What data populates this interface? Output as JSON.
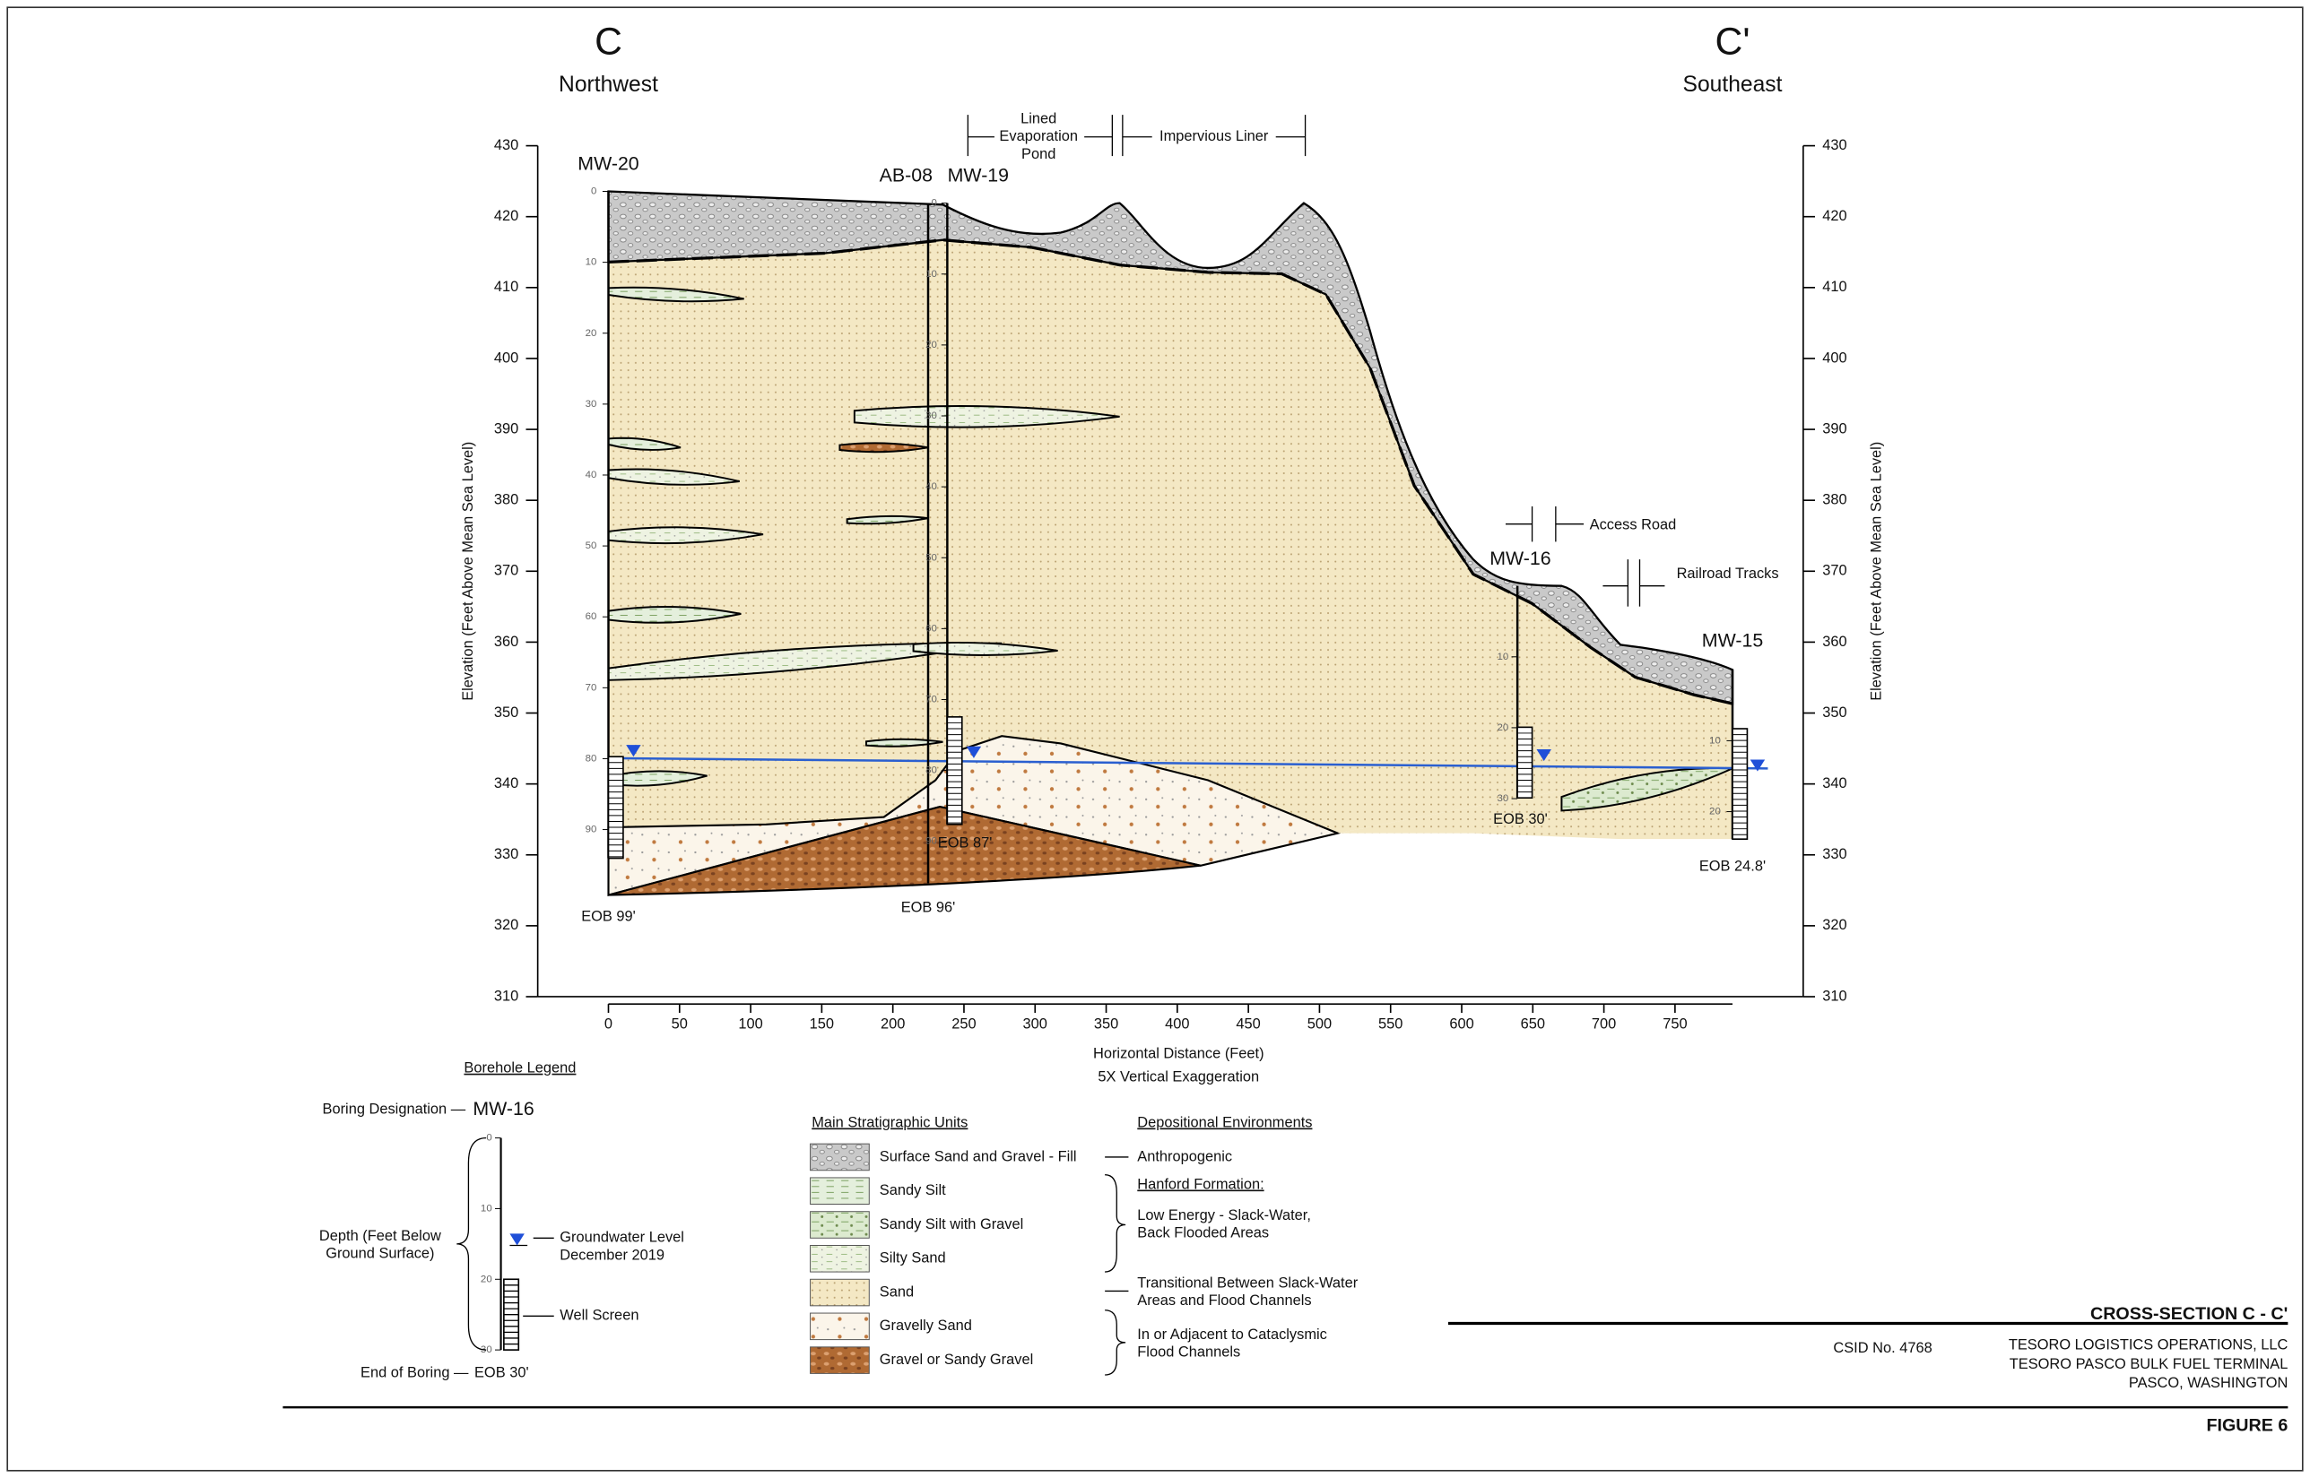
{
  "headings": {
    "left_letter": "C",
    "left_direction": "Northwest",
    "right_letter": "C'",
    "right_direction": "Southeast"
  },
  "annotations": {
    "pond": [
      "Lined",
      "Evaporation",
      "Pond"
    ],
    "liner": "Impervious Liner",
    "access_road": "Access Road",
    "railroad": "Railroad Tracks"
  },
  "boreholes": [
    {
      "name": "MW-20",
      "eob": "EOB 99'",
      "depth_ticks": [
        0,
        10,
        20,
        30,
        40,
        50,
        60,
        70,
        80,
        90
      ]
    },
    {
      "name": "AB-08",
      "eob": "EOB 96'"
    },
    {
      "name": "MW-19",
      "eob": "EOB 87'",
      "depth_ticks": [
        0,
        10,
        20,
        30,
        40,
        50,
        60,
        70,
        80,
        90
      ]
    },
    {
      "name": "MW-16",
      "eob": "EOB 30'",
      "depth_ticks": [
        10,
        20,
        30
      ]
    },
    {
      "name": "MW-15",
      "eob": "EOB 24.8'",
      "depth_ticks": [
        10,
        20
      ]
    }
  ],
  "axes": {
    "y_label": "Elevation (Feet Above Mean Sea Level)",
    "y_ticks": [
      430,
      420,
      410,
      400,
      390,
      380,
      370,
      360,
      350,
      340,
      330,
      320,
      310
    ],
    "x_label": "Horizontal Distance (Feet)",
    "x_note": "5X Vertical Exaggeration",
    "x_ticks": [
      0,
      50,
      100,
      150,
      200,
      250,
      300,
      350,
      400,
      450,
      500,
      550,
      600,
      650,
      700,
      750
    ]
  },
  "borehole_legend": {
    "title": "Borehole Legend",
    "designation_label": "Boring Designation —",
    "designation": "MW-16",
    "depth_label": [
      "Depth (Feet Below",
      "Ground Surface)"
    ],
    "depth_ticks": [
      0,
      10,
      20,
      30
    ],
    "groundwater": [
      "Groundwater Level",
      "December 2019"
    ],
    "screen": "Well Screen",
    "eob_label": "End of Boring —",
    "eob": "EOB 30'"
  },
  "strat_units": {
    "title": "Main Stratigraphic Units",
    "items": [
      "Surface Sand and Gravel - Fill",
      "Sandy Silt",
      "Sandy Silt with Gravel",
      "Silty Sand",
      "Sand",
      "Gravelly Sand",
      "Gravel or Sandy Gravel"
    ]
  },
  "environments": {
    "title": "Depositional Environments",
    "anthropogenic": "Anthropogenic",
    "hanford": "Hanford Formation:",
    "low_energy": [
      "Low Energy - Slack-Water,",
      "Back Flooded Areas"
    ],
    "transitional": [
      "Transitional Between Slack-Water",
      "Areas and Flood Channels"
    ],
    "cataclysmic": [
      "In or Adjacent to Cataclysmic",
      "Flood Channels"
    ]
  },
  "title_block": {
    "title": "CROSS-SECTION C - C'",
    "csid": "CSID No. 4768",
    "lines": [
      "TESORO LOGISTICS OPERATIONS, LLC",
      "TESORO PASCO BULK FUEL TERMINAL",
      "PASCO, WASHINGTON"
    ],
    "figure": "FIGURE 6"
  }
}
